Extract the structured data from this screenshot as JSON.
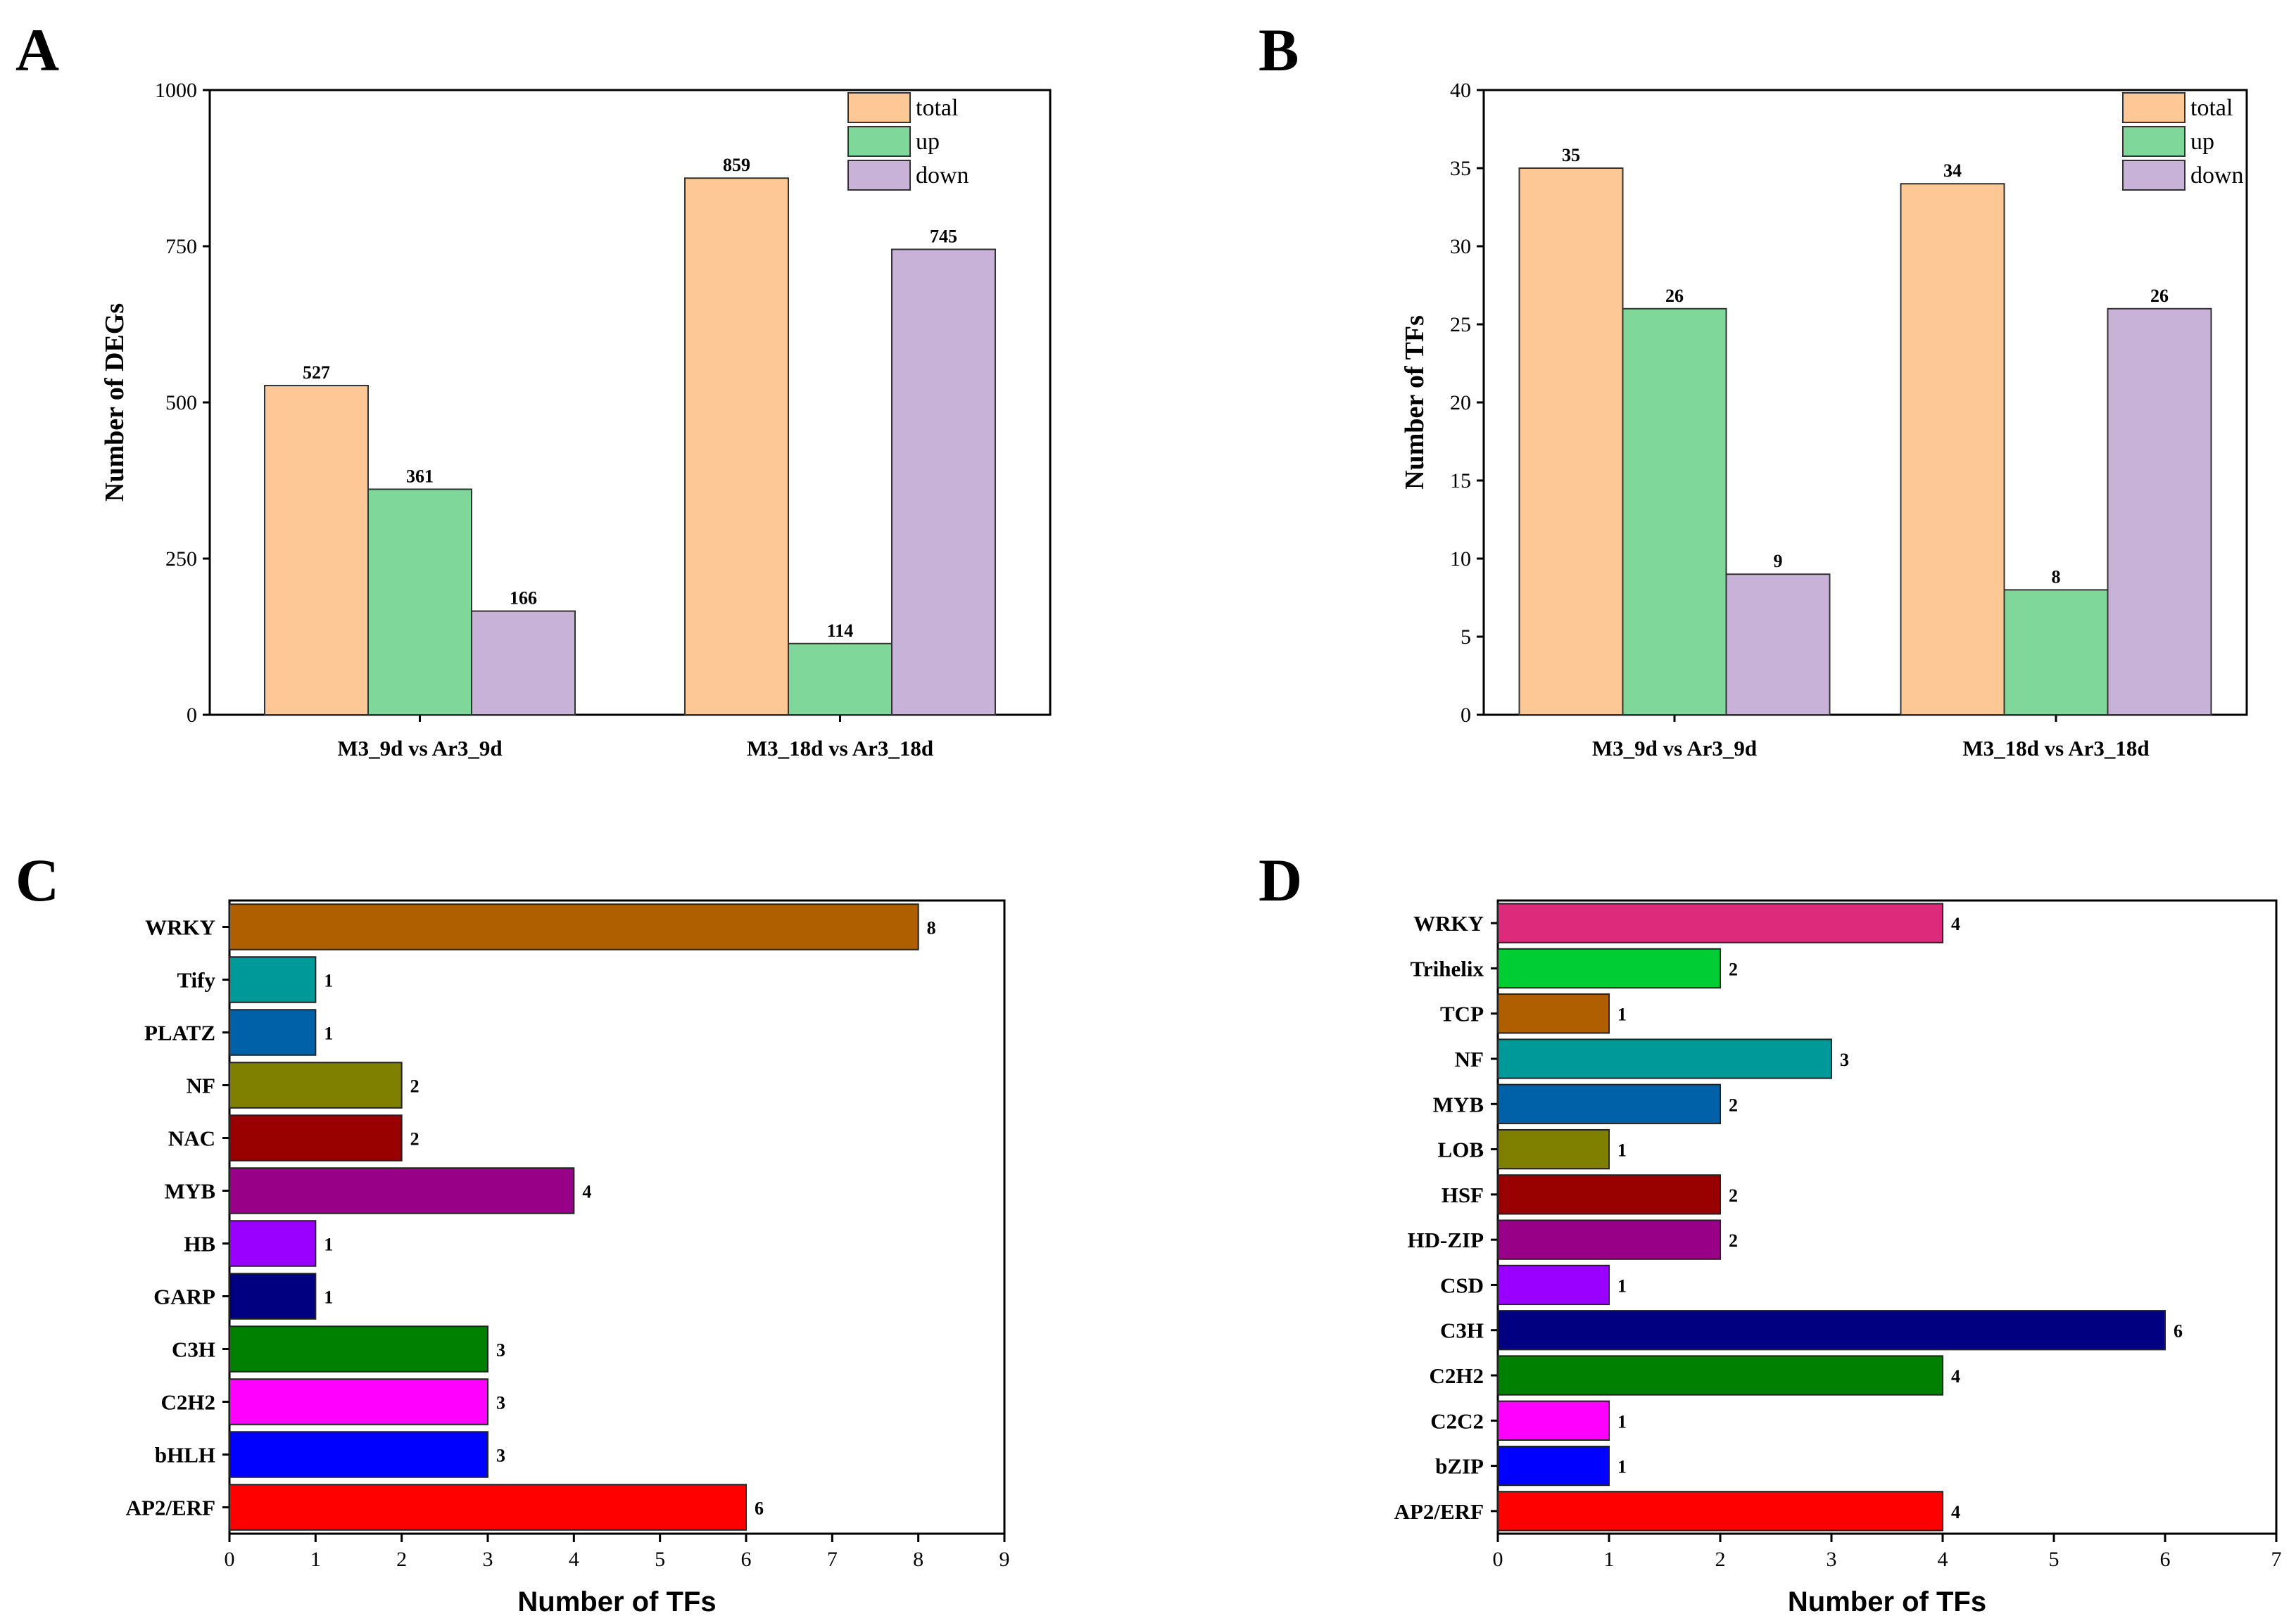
{
  "figure": {
    "panels": [
      "A",
      "B",
      "C",
      "D"
    ]
  },
  "chart_data": [
    {
      "panel": "A",
      "type": "bar",
      "categories": [
        "M3_9d vs Ar3_9d",
        "M3_18d vs Ar3_18d"
      ],
      "series": [
        {
          "name": "total",
          "color": "#FDC896",
          "values": [
            527,
            859
          ]
        },
        {
          "name": "up",
          "color": "#7FD89A",
          "values": [
            361,
            114
          ]
        },
        {
          "name": "down",
          "color": "#C8B2D8",
          "values": [
            166,
            745
          ]
        }
      ],
      "xlabel": "",
      "ylabel": "Number of DEGs",
      "ylim": [
        0,
        1000
      ],
      "yticks": [
        0,
        250,
        500,
        750,
        1000
      ],
      "legend": "top-right"
    },
    {
      "panel": "B",
      "type": "bar",
      "categories": [
        "M3_9d vs Ar3_9d",
        "M3_18d vs Ar3_18d"
      ],
      "series": [
        {
          "name": "total",
          "color": "#FDC896",
          "values": [
            35,
            34
          ]
        },
        {
          "name": "up",
          "color": "#7FD89A",
          "values": [
            26,
            8
          ]
        },
        {
          "name": "down",
          "color": "#C8B2D8",
          "values": [
            9,
            26
          ]
        }
      ],
      "xlabel": "",
      "ylabel": "Number of TFs",
      "ylim": [
        0,
        40
      ],
      "yticks": [
        0,
        5,
        10,
        15,
        20,
        25,
        30,
        35,
        40
      ],
      "legend": "top-right"
    },
    {
      "panel": "C",
      "type": "bar",
      "orientation": "horizontal",
      "categories": [
        "WRKY",
        "Tify",
        "PLATZ",
        "NF",
        "NAC",
        "MYB",
        "HB",
        "GARP",
        "C3H",
        "C2H2",
        "bHLH",
        "AP2/ERF"
      ],
      "values": [
        8,
        1,
        1,
        2,
        2,
        4,
        1,
        1,
        3,
        3,
        3,
        6
      ],
      "colors": [
        "#B05F00",
        "#009999",
        "#0060A8",
        "#808000",
        "#990000",
        "#990088",
        "#9900FF",
        "#000080",
        "#008000",
        "#FF00FF",
        "#0000FF",
        "#FF0000"
      ],
      "xlabel": "Number of TFs",
      "ylabel": "",
      "xlim": [
        0,
        9
      ],
      "xticks": [
        0,
        1,
        2,
        3,
        4,
        5,
        6,
        7,
        8,
        9
      ]
    },
    {
      "panel": "D",
      "type": "bar",
      "orientation": "horizontal",
      "categories": [
        "WRKY",
        "Trihelix",
        "TCP",
        "NF",
        "MYB",
        "LOB",
        "HSF",
        "HD-ZIP",
        "CSD",
        "C3H",
        "C2H2",
        "C2C2",
        "bZIP",
        "AP2/ERF"
      ],
      "values": [
        4,
        2,
        1,
        3,
        2,
        1,
        2,
        2,
        1,
        6,
        4,
        1,
        1,
        4
      ],
      "colors": [
        "#DD2A7B",
        "#00CC33",
        "#B05F00",
        "#009999",
        "#0060A8",
        "#808000",
        "#990000",
        "#990088",
        "#9900FF",
        "#000080",
        "#008000",
        "#FF00FF",
        "#0000FF",
        "#FF0000"
      ],
      "xlabel": "Number of TFs",
      "ylabel": "",
      "xlim": [
        0,
        7
      ],
      "xticks": [
        0,
        1,
        2,
        3,
        4,
        5,
        6,
        7
      ]
    }
  ]
}
